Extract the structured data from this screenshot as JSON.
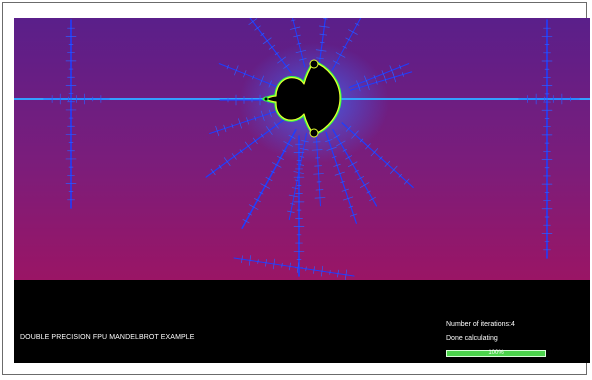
{
  "app": {
    "title": "DOUBLE PRECISION FPU MANDELBROT EXAMPLE",
    "iterations_label": "Number of iterations:4",
    "status_text": "Done calculating",
    "progress": {
      "value": 1.0,
      "label": "100%"
    }
  },
  "colors": {
    "background_top": "#5a1f8a",
    "background_bottom": "#9a1565",
    "fractal_blue": "#1e3cff",
    "fractal_cyan": "#3ad7ff",
    "fractal_green": "#35ff45",
    "fractal_yellow": "#e4ff30",
    "set_black": "#000000",
    "progress_fill": "#4cd34c"
  }
}
